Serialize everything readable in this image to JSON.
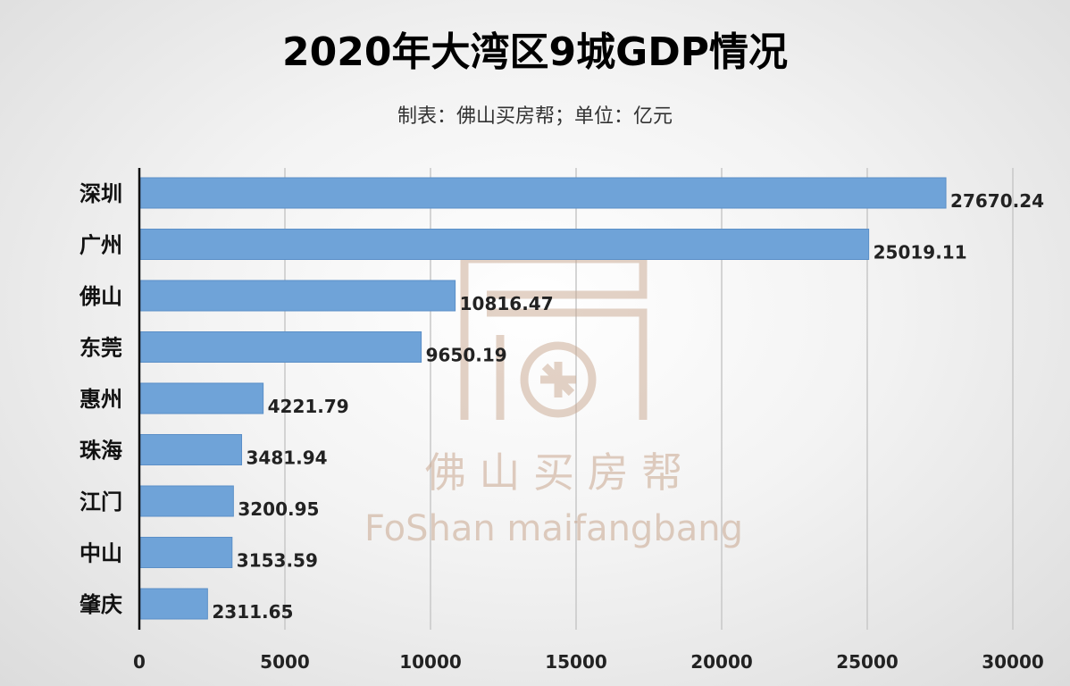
{
  "title": "2020年大湾区9城GDP情况",
  "subtitle": "制表：佛山买房帮；单位：亿元",
  "watermark": {
    "cn": "佛 山 买 房 帮",
    "en": "FoShan maifangbang",
    "color": "#c9a78f"
  },
  "colors": {
    "bar": "#6fa3d8",
    "bar_edge": "#5b8fc7",
    "grid": "#c8c8c8",
    "axis": "#111111"
  },
  "chart_data": {
    "type": "bar",
    "orientation": "horizontal",
    "categories": [
      "深圳",
      "广州",
      "佛山",
      "东莞",
      "惠州",
      "珠海",
      "江门",
      "中山",
      "肇庆"
    ],
    "values": [
      27670.24,
      25019.11,
      10816.47,
      9650.19,
      4221.79,
      3481.94,
      3200.95,
      3153.59,
      2311.65
    ],
    "value_labels": [
      "27670.24",
      "25019.11",
      "10816.47",
      "9650.19",
      "4221.79",
      "3481.94",
      "3200.95",
      "3153.59",
      "2311.65"
    ],
    "xlim": [
      0,
      30000
    ],
    "xticks": [
      0,
      5000,
      10000,
      15000,
      20000,
      25000,
      30000
    ],
    "grid": "vertical",
    "legend": "none"
  }
}
